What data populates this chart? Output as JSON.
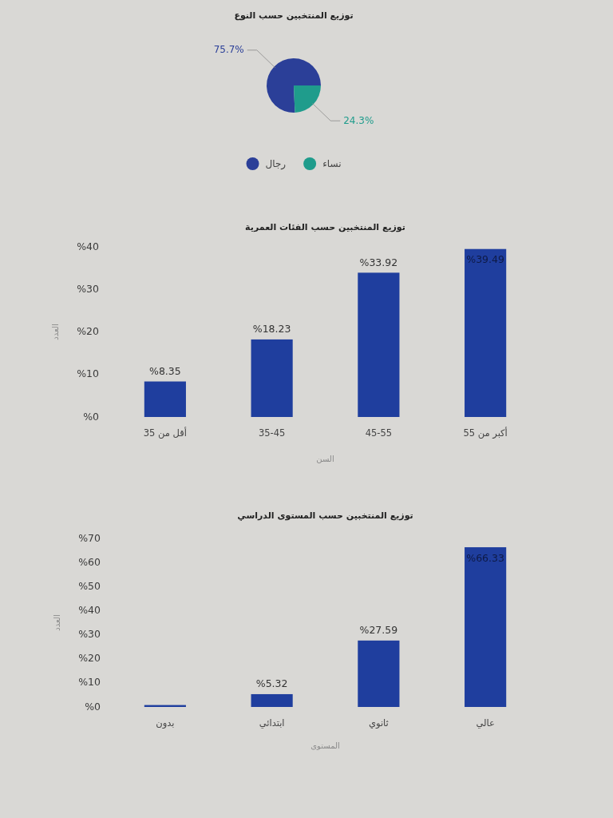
{
  "chart_data": [
    {
      "type": "pie",
      "title": "توزيع المنتخبين حسب النوع",
      "categories": [
        "رجال",
        "نساء"
      ],
      "values": [
        75.7,
        24.3
      ],
      "colors": [
        "#2b3f98",
        "#1f9c8c"
      ],
      "value_labels": [
        "75.7%",
        "24.3%"
      ],
      "legend": "bottom"
    },
    {
      "type": "bar",
      "title": "توزيع المنتخبين حسب الفئات العمرية",
      "xlabel": "السن",
      "ylabel": "العدد",
      "categories": [
        "أقل من 35",
        "35-45",
        "45-55",
        "أكبر من 55"
      ],
      "values": [
        8.35,
        18.23,
        33.92,
        39.49
      ],
      "color": "#1f3e9e",
      "ylim": [
        0,
        40
      ],
      "yticks": [
        {
          "value": 0,
          "label": "%0"
        },
        {
          "value": 10,
          "label": "%10"
        },
        {
          "value": 20,
          "label": "%20"
        },
        {
          "value": 30,
          "label": "%30"
        },
        {
          "value": 40,
          "label": "%40"
        }
      ],
      "value_labels": [
        "%8.35",
        "%18.23",
        "%33.92",
        "%39.49"
      ]
    },
    {
      "type": "bar",
      "title": "توزيع المنتخبين حسب المستوى الدراسي",
      "xlabel": "المستوى",
      "ylabel": "العدد",
      "categories": [
        "بدون",
        "ابتدائي",
        "ثانوي",
        "عالي"
      ],
      "values": [
        0.8,
        5.32,
        27.59,
        66.33
      ],
      "color": "#1f3e9e",
      "ylim": [
        0,
        70
      ],
      "yticks": [
        {
          "value": 0,
          "label": "%0"
        },
        {
          "value": 10,
          "label": "%10"
        },
        {
          "value": 20,
          "label": "%20"
        },
        {
          "value": 30,
          "label": "%30"
        },
        {
          "value": 40,
          "label": "%40"
        },
        {
          "value": 50,
          "label": "%50"
        },
        {
          "value": 60,
          "label": "%60"
        },
        {
          "value": 70,
          "label": "%70"
        }
      ],
      "value_labels": [
        null,
        "%5.32",
        "%27.59",
        "%66.33"
      ]
    }
  ]
}
